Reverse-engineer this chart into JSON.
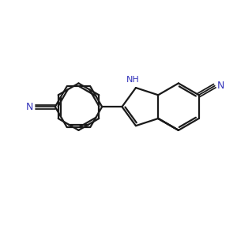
{
  "background_color": "#ffffff",
  "bond_color": "#1a1a1a",
  "N_color": "#3333bb",
  "lw": 1.6,
  "figsize": [
    3.0,
    3.0
  ],
  "dpi": 100,
  "bl": 1.0,
  "xlim": [
    -0.5,
    9.5
  ],
  "ylim": [
    -0.5,
    9.5
  ]
}
